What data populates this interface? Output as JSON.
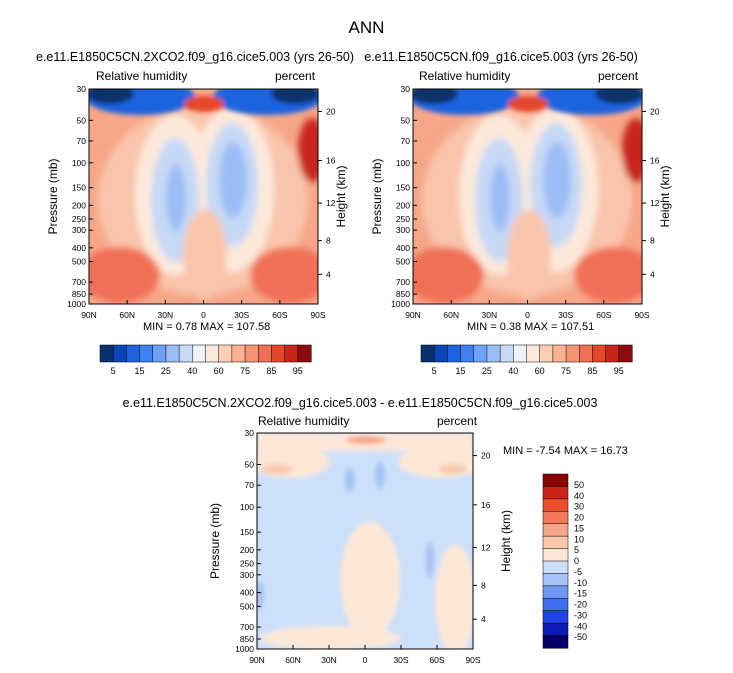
{
  "page": {
    "title": "ANN"
  },
  "colors": {
    "full_scale": [
      "#08306b",
      "#0a44b8",
      "#1f63e0",
      "#3f81f0",
      "#6fa1f4",
      "#9bbdf5",
      "#c6d9f6",
      "#eef3fb",
      "#fde9dc",
      "#fbcfb6",
      "#f9b392",
      "#f69575",
      "#f07054",
      "#e4472c",
      "#c8261a",
      "#8b0c0a"
    ],
    "diff_scale": [
      "#08006a",
      "#0d1ab5",
      "#1f44e0",
      "#3f6fef",
      "#6f98f2",
      "#a3c2f6",
      "#cde0fa",
      "#fde8d8",
      "#f9c9ac",
      "#f6a586",
      "#f27a59",
      "#e94e31",
      "#cc2418",
      "#8b0000"
    ]
  },
  "panels": {
    "p1": {
      "title": "e.e11.E1850C5CN.2XCO2.f09_g16.cice5.003 (yrs 26-50)",
      "left_label": "Relative humidity",
      "right_label": "percent",
      "stats": "MIN =   0.78  MAX = 107.58"
    },
    "p2": {
      "title": "e.e11.E1850C5CN.f09_g16.cice5.003 (yrs 26-50)",
      "left_label": "Relative humidity",
      "right_label": "percent",
      "stats": "MIN =   0.38  MAX = 107.51"
    },
    "p3": {
      "title": "e.e11.E1850C5CN.2XCO2.f09_g16.cice5.003 - e.e11.E1850C5CN.f09_g16.cice5.003",
      "left_label": "Relative humidity",
      "right_label": "percent",
      "stats": "MIN =  -7.54   MAX =  16.73"
    }
  },
  "chart_data": [
    {
      "type": "heatmap",
      "title": "e.e11.E1850C5CN.2XCO2.f09_g16.cice5.003 (yrs 26-50)",
      "variable": "Relative humidity",
      "units": "percent",
      "ylabel": "Pressure (mb)",
      "ylabel_right": "Height (km)",
      "x_ticks": [
        "90N",
        "60N",
        "30N",
        "0",
        "30S",
        "60S",
        "90S"
      ],
      "y_ticks": [
        "30",
        "50",
        "70",
        "100",
        "150",
        "200",
        "250",
        "300",
        "400",
        "500",
        "700",
        "850",
        "1000"
      ],
      "height_ticks": [
        "20",
        "16",
        "12",
        "8",
        "4"
      ],
      "colorbar_levels": [
        "5",
        "15",
        "25",
        "40",
        "60",
        "75",
        "85",
        "95"
      ],
      "min": 0.78,
      "max": 107.58
    },
    {
      "type": "heatmap",
      "title": "e.e11.E1850C5CN.f09_g16.cice5.003 (yrs 26-50)",
      "variable": "Relative humidity",
      "units": "percent",
      "ylabel": "Pressure (mb)",
      "ylabel_right": "Height (km)",
      "x_ticks": [
        "90N",
        "60N",
        "30N",
        "0",
        "30S",
        "60S",
        "90S"
      ],
      "y_ticks": [
        "30",
        "50",
        "70",
        "100",
        "150",
        "200",
        "250",
        "300",
        "400",
        "500",
        "700",
        "850",
        "1000"
      ],
      "height_ticks": [
        "20",
        "16",
        "12",
        "8",
        "4"
      ],
      "colorbar_levels": [
        "5",
        "15",
        "25",
        "40",
        "60",
        "75",
        "85",
        "95"
      ],
      "min": 0.38,
      "max": 107.51
    },
    {
      "type": "heatmap",
      "title": "e.e11.E1850C5CN.2XCO2.f09_g16.cice5.003 - e.e11.E1850C5CN.f09_g16.cice5.003",
      "variable": "Relative humidity",
      "units": "percent",
      "ylabel": "Pressure (mb)",
      "ylabel_right": "Height (km)",
      "x_ticks": [
        "90N",
        "60N",
        "30N",
        "0",
        "30S",
        "60S",
        "90S"
      ],
      "y_ticks": [
        "30",
        "50",
        "70",
        "100",
        "150",
        "200",
        "250",
        "300",
        "400",
        "500",
        "700",
        "850",
        "1000"
      ],
      "height_ticks": [
        "20",
        "16",
        "12",
        "8",
        "4"
      ],
      "colorbar_levels": [
        "50",
        "40",
        "30",
        "20",
        "15",
        "10",
        "5",
        "0",
        "-5",
        "-10",
        "-15",
        "-20",
        "-30",
        "-40",
        "-50"
      ],
      "min": -7.54,
      "max": 16.73
    }
  ]
}
